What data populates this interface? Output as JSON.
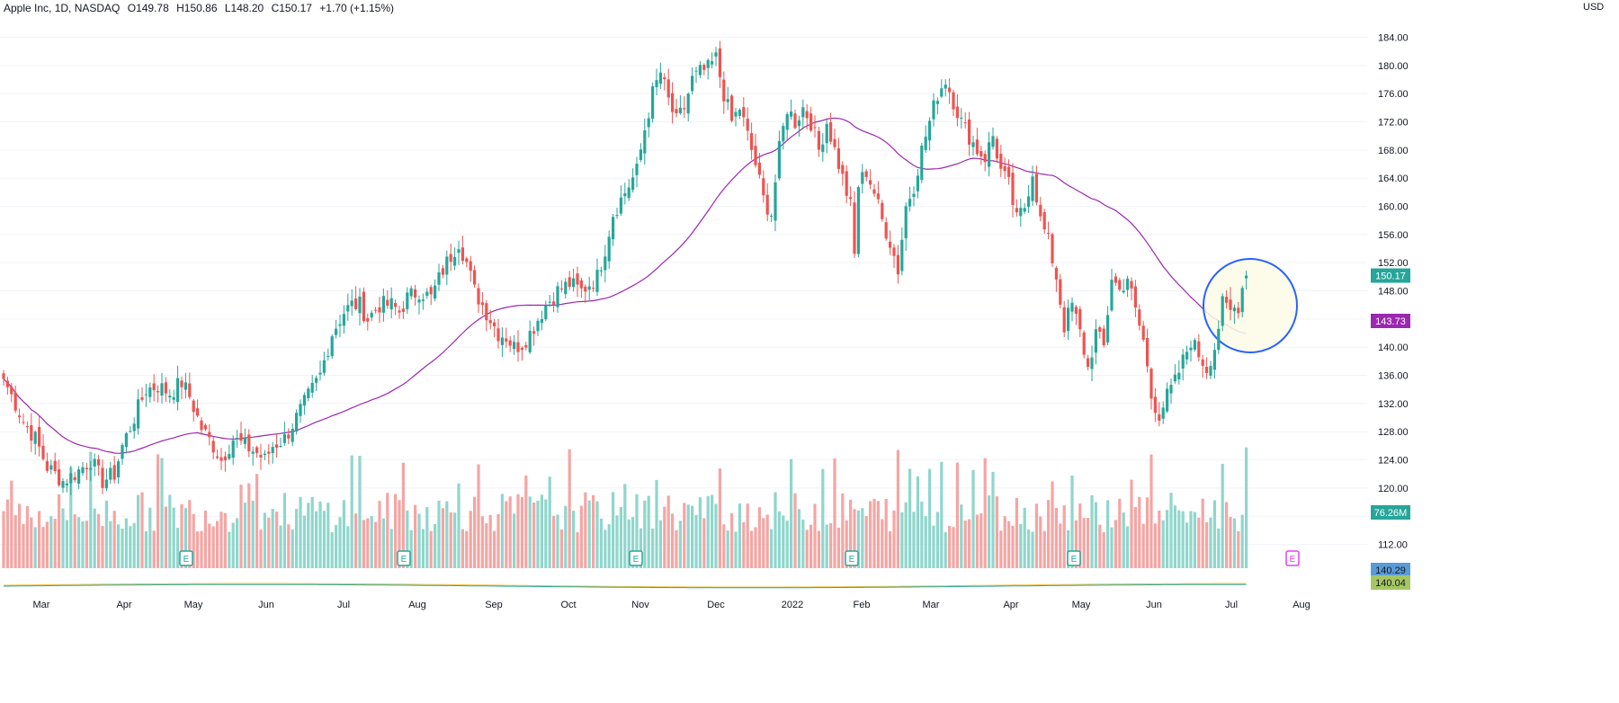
{
  "header": {
    "symbol_text": "Apple Inc, 1D, NASDAQ",
    "open_text": "O149.78",
    "high_text": "H150.86",
    "low_text": "L148.20",
    "close_text": "C150.17",
    "change_text": "+1.70 (+1.15%)",
    "currency": "USD"
  },
  "price_tags": {
    "last_price": "150.17",
    "ma_value": "143.73",
    "volume": "76.26M",
    "indicator_top": "140.29",
    "indicator_bottom": "140.04"
  },
  "colors": {
    "up": "#26a69a",
    "down": "#ef5350",
    "up_volume": "#8fd6cc",
    "down_volume": "#f5a5a3",
    "ma_line": "#9c27b0",
    "highlight_circle": "#2962ff",
    "highlight_fill": "#fdfbe8",
    "grid": "#f0f3fa",
    "earnings_badge": "#26a69a",
    "upcoming_earnings_badge": "#e040fb"
  },
  "earnings_markers": {
    "label": "E",
    "past_dates": [
      "May",
      "Aug",
      "Nov",
      "Feb (2022)",
      "May (2022)"
    ],
    "upcoming": "Aug"
  },
  "chart_data": {
    "type": "candlestick",
    "title": "Apple Inc, 1D, NASDAQ",
    "currency": "USD",
    "y_ticks": [
      112,
      116,
      120,
      124,
      128,
      132,
      136,
      140,
      144,
      148,
      152,
      156,
      160,
      164,
      168,
      172,
      176,
      180,
      184
    ],
    "x_ticks": [
      "Mar",
      "Apr",
      "May",
      "Jun",
      "Jul",
      "Aug",
      "Sep",
      "Oct",
      "Nov",
      "Dec",
      "2022",
      "Feb",
      "Mar",
      "Apr",
      "May",
      "Jun",
      "Jul",
      "Aug"
    ],
    "ylim": [
      108.5,
      187
    ],
    "grid": true,
    "anchors": [
      {
        "i": 0,
        "p": 135.5
      },
      {
        "i": 3,
        "p": 132
      },
      {
        "i": 5,
        "p": 129.5
      },
      {
        "i": 8,
        "p": 127
      },
      {
        "i": 11,
        "p": 123
      },
      {
        "i": 15,
        "p": 121
      },
      {
        "i": 18,
        "p": 122
      },
      {
        "i": 22,
        "p": 124
      },
      {
        "i": 25,
        "p": 121
      },
      {
        "i": 28,
        "p": 122
      },
      {
        "i": 30,
        "p": 126
      },
      {
        "i": 33,
        "p": 130
      },
      {
        "i": 36,
        "p": 134
      },
      {
        "i": 39,
        "p": 134.5
      },
      {
        "i": 42,
        "p": 133.5
      },
      {
        "i": 45,
        "p": 135
      },
      {
        "i": 47,
        "p": 133
      },
      {
        "i": 50,
        "p": 128.5
      },
      {
        "i": 53,
        "p": 126
      },
      {
        "i": 55,
        "p": 124
      },
      {
        "i": 58,
        "p": 127
      },
      {
        "i": 61,
        "p": 126
      },
      {
        "i": 64,
        "p": 125
      },
      {
        "i": 66,
        "p": 124
      },
      {
        "i": 68,
        "p": 126
      },
      {
        "i": 71,
        "p": 127
      },
      {
        "i": 74,
        "p": 130
      },
      {
        "i": 77,
        "p": 133
      },
      {
        "i": 80,
        "p": 136
      },
      {
        "i": 83,
        "p": 142
      },
      {
        "i": 86,
        "p": 145
      },
      {
        "i": 88,
        "p": 146
      },
      {
        "i": 90,
        "p": 146
      },
      {
        "i": 92,
        "p": 144
      },
      {
        "i": 95,
        "p": 146
      },
      {
        "i": 98,
        "p": 146
      },
      {
        "i": 100,
        "p": 145
      },
      {
        "i": 102,
        "p": 147
      },
      {
        "i": 105,
        "p": 148
      },
      {
        "i": 108,
        "p": 147
      },
      {
        "i": 111,
        "p": 151
      },
      {
        "i": 113,
        "p": 153
      },
      {
        "i": 115,
        "p": 155
      },
      {
        "i": 117,
        "p": 152
      },
      {
        "i": 119,
        "p": 148
      },
      {
        "i": 121,
        "p": 146
      },
      {
        "i": 123,
        "p": 144
      },
      {
        "i": 125,
        "p": 142
      },
      {
        "i": 127,
        "p": 141.5
      },
      {
        "i": 129,
        "p": 140
      },
      {
        "i": 131,
        "p": 140.5
      },
      {
        "i": 133,
        "p": 142
      },
      {
        "i": 135,
        "p": 144
      },
      {
        "i": 137,
        "p": 146
      },
      {
        "i": 140,
        "p": 148
      },
      {
        "i": 143,
        "p": 149
      },
      {
        "i": 146,
        "p": 148
      },
      {
        "i": 148,
        "p": 149
      },
      {
        "i": 150,
        "p": 150
      },
      {
        "i": 152,
        "p": 154
      },
      {
        "i": 154,
        "p": 159
      },
      {
        "i": 156,
        "p": 161
      },
      {
        "i": 158,
        "p": 163
      },
      {
        "i": 160,
        "p": 165
      },
      {
        "i": 162,
        "p": 171
      },
      {
        "i": 164,
        "p": 176
      },
      {
        "i": 166,
        "p": 179
      },
      {
        "i": 168,
        "p": 175
      },
      {
        "i": 170,
        "p": 172
      },
      {
        "i": 172,
        "p": 174
      },
      {
        "i": 174,
        "p": 178
      },
      {
        "i": 176,
        "p": 179
      },
      {
        "i": 178,
        "p": 179.5
      },
      {
        "i": 180,
        "p": 181
      },
      {
        "i": 182,
        "p": 176
      },
      {
        "i": 184,
        "p": 172
      },
      {
        "i": 186,
        "p": 174
      },
      {
        "i": 188,
        "p": 170
      },
      {
        "i": 190,
        "p": 166
      },
      {
        "i": 192,
        "p": 161
      },
      {
        "i": 194,
        "p": 159
      },
      {
        "i": 196,
        "p": 168
      },
      {
        "i": 198,
        "p": 174
      },
      {
        "i": 200,
        "p": 172
      },
      {
        "i": 202,
        "p": 174
      },
      {
        "i": 204,
        "p": 172
      },
      {
        "i": 206,
        "p": 168
      },
      {
        "i": 208,
        "p": 172
      },
      {
        "i": 210,
        "p": 168
      },
      {
        "i": 212,
        "p": 164
      },
      {
        "i": 214,
        "p": 160
      },
      {
        "i": 215,
        "p": 153
      },
      {
        "i": 216,
        "p": 163
      },
      {
        "i": 218,
        "p": 165
      },
      {
        "i": 220,
        "p": 162
      },
      {
        "i": 222,
        "p": 158
      },
      {
        "i": 224,
        "p": 155
      },
      {
        "i": 226,
        "p": 151
      },
      {
        "i": 228,
        "p": 160
      },
      {
        "i": 230,
        "p": 163
      },
      {
        "i": 232,
        "p": 168
      },
      {
        "i": 234,
        "p": 172
      },
      {
        "i": 236,
        "p": 176
      },
      {
        "i": 238,
        "p": 178
      },
      {
        "i": 240,
        "p": 175
      },
      {
        "i": 242,
        "p": 172
      },
      {
        "i": 244,
        "p": 170
      },
      {
        "i": 246,
        "p": 168
      },
      {
        "i": 248,
        "p": 167
      },
      {
        "i": 250,
        "p": 170
      },
      {
        "i": 252,
        "p": 165
      },
      {
        "i": 254,
        "p": 163
      },
      {
        "i": 256,
        "p": 158
      },
      {
        "i": 258,
        "p": 160
      },
      {
        "i": 260,
        "p": 165
      },
      {
        "i": 262,
        "p": 158
      },
      {
        "i": 264,
        "p": 155
      },
      {
        "i": 266,
        "p": 150
      },
      {
        "i": 268,
        "p": 143
      },
      {
        "i": 270,
        "p": 146
      },
      {
        "i": 272,
        "p": 142
      },
      {
        "i": 274,
        "p": 137
      },
      {
        "i": 276,
        "p": 142
      },
      {
        "i": 278,
        "p": 140
      },
      {
        "i": 280,
        "p": 150
      },
      {
        "i": 282,
        "p": 148
      },
      {
        "i": 284,
        "p": 150
      },
      {
        "i": 286,
        "p": 145
      },
      {
        "i": 288,
        "p": 141
      },
      {
        "i": 290,
        "p": 133
      },
      {
        "i": 292,
        "p": 130.5
      },
      {
        "i": 294,
        "p": 133
      },
      {
        "i": 296,
        "p": 135
      },
      {
        "i": 298,
        "p": 138
      },
      {
        "i": 300,
        "p": 141
      },
      {
        "i": 302,
        "p": 139
      },
      {
        "i": 304,
        "p": 137
      },
      {
        "i": 306,
        "p": 140
      },
      {
        "i": 308,
        "p": 146
      },
      {
        "i": 310,
        "p": 145
      },
      {
        "i": 312,
        "p": 146
      },
      {
        "i": 313,
        "p": 148.5
      },
      {
        "i": 314,
        "p": 150.17
      }
    ]
  }
}
